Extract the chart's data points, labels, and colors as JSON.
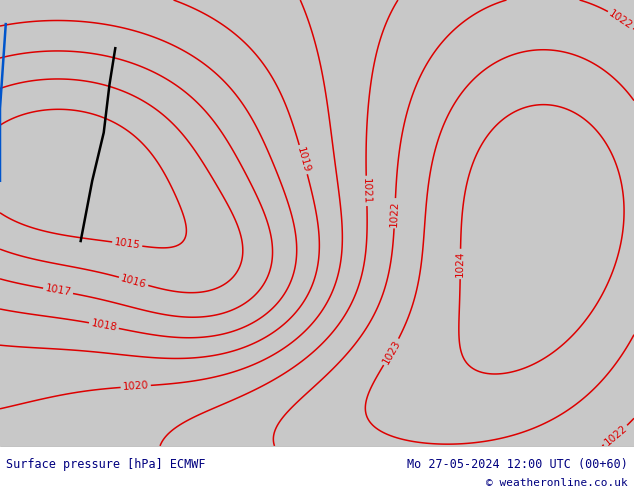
{
  "title_left": "Surface pressure [hPa] ECMWF",
  "title_right": "Mo 27-05-2024 12:00 UTC (00+60)",
  "copyright": "© weatheronline.co.uk",
  "land_color": "#b5e085",
  "sea_color": "#c8c8c8",
  "contour_color": "#dd0000",
  "border_color": "#999999",
  "bottom_bar_color": "#ffffff",
  "title_text_color": "#000080",
  "contour_label_color": "#dd0000",
  "contour_label_fontsize": 7.5,
  "blue_line_color": "#0055cc",
  "black_line_color": "#000000",
  "font_size_bottom": 8.5,
  "fig_width": 6.34,
  "fig_height": 4.9,
  "dpi": 100,
  "map_extent": [
    -15,
    40,
    35,
    72
  ],
  "contour_lw": 1.1
}
